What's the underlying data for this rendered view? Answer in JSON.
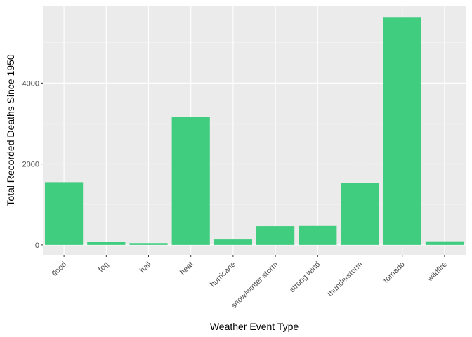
{
  "chart_data": {
    "type": "bar",
    "title": "",
    "xlabel": "Weather Event Type",
    "ylabel": "Total Recorded Deaths Since 1950",
    "categories": [
      "flood",
      "fog",
      "hail",
      "heat",
      "hurricane",
      "snow/winter storm",
      "strong wind",
      "thunderstorm",
      "tornado",
      "wildfire"
    ],
    "values": [
      1553,
      80,
      45,
      3170,
      135,
      465,
      470,
      1525,
      5633,
      90
    ],
    "ylim": [
      -245,
      5915
    ],
    "yticks": [
      0,
      2000,
      4000
    ],
    "ytick_labels": [
      "0",
      "2000",
      "4000"
    ],
    "grid": true,
    "legend": "none",
    "colors": {
      "bar": "#41cd80",
      "panel": "#ebebeb",
      "grid_major": "#ffffff",
      "grid_minor": "#f5f5f5"
    }
  }
}
